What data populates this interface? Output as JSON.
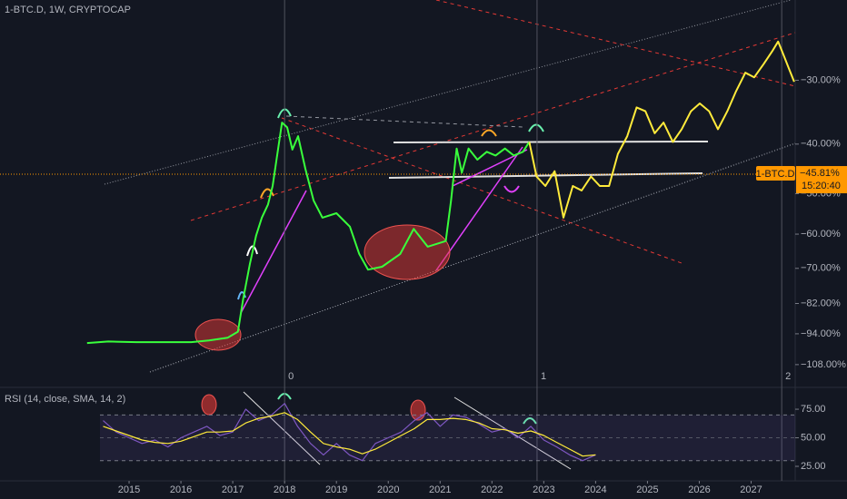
{
  "chart_data": [
    {
      "type": "line",
      "title": "1-BTC.D, 1W, CRYPTOCAP",
      "log_scale": true,
      "xlim": [
        2012.51,
        2027.85
      ],
      "ylim": [
        -118.7,
        -20.9
      ],
      "xticks": [
        2015,
        2016,
        2017,
        2018,
        2019,
        2020,
        2021,
        2022,
        2023,
        2024,
        2025,
        2026,
        2027
      ],
      "yticks": [
        {
          "value": -30,
          "label": "−30.00%"
        },
        {
          "value": -40,
          "label": "−40.00%"
        },
        {
          "value": -50,
          "label": "−50.00%"
        },
        {
          "value": -60,
          "label": "−60.00%"
        },
        {
          "value": -70,
          "label": "−70.00%"
        },
        {
          "value": -82,
          "label": "−82.00%"
        },
        {
          "value": -94,
          "label": "−94.00%"
        },
        {
          "value": -108,
          "label": "−108.00%"
        }
      ],
      "series": [
        {
          "color": "#39ff3c",
          "x": [
            2014.19,
            2014.6,
            2015.14,
            2015.67,
            2016.2,
            2016.54,
            2016.9,
            2017.1,
            2017.2,
            2017.33,
            2017.45,
            2017.56,
            2017.68,
            2017.77,
            2017.86,
            2017.95,
            2018.05,
            2018.15,
            2018.26,
            2018.4,
            2018.56,
            2018.73,
            2019.0,
            2019.26,
            2019.44,
            2019.61,
            2019.88,
            2020.23,
            2020.49,
            2020.76,
            2021.11,
            2021.21,
            2021.32,
            2021.42,
            2021.55,
            2021.72,
            2021.9,
            2022.07,
            2022.25,
            2022.42,
            2022.6,
            2022.72
          ],
          "values": [
            -98.0,
            -97.3,
            -97.6,
            -97.6,
            -97.6,
            -96.9,
            -95.7,
            -93.1,
            -80.5,
            -68.7,
            -60.4,
            -55.7,
            -52.5,
            -48.3,
            -41.8,
            -36.3,
            -37.1,
            -41.0,
            -38.6,
            -44.7,
            -51.6,
            -55.7,
            -54.6,
            -58.0,
            -65.6,
            -70.4,
            -69.5,
            -65.6,
            -58.6,
            -63.5,
            -61.9,
            -51.6,
            -40.8,
            -45.5,
            -40.8,
            -42.9,
            -41.4,
            -42.1,
            -40.8,
            -42.1,
            -41.4,
            -39.6
          ]
        },
        {
          "color": "#ffeb3b",
          "x": [
            2022.72,
            2022.86,
            2023.03,
            2023.21,
            2023.38,
            2023.56,
            2023.73,
            2023.91,
            2024.08,
            2024.26,
            2024.43,
            2024.61,
            2024.79,
            2024.96,
            2025.14,
            2025.31,
            2025.49,
            2025.66,
            2025.84,
            2026.01,
            2026.19,
            2026.36,
            2026.54,
            2026.71,
            2026.89,
            2027.06,
            2027.24,
            2027.41,
            2027.52,
            2027.62,
            2027.73,
            2027.83
          ],
          "values": [
            -39.6,
            -46.3,
            -48.3,
            -45.2,
            -55.7,
            -48.3,
            -49.3,
            -46.3,
            -48.3,
            -48.3,
            -41.8,
            -38.6,
            -33.9,
            -34.5,
            -38.1,
            -36.3,
            -39.6,
            -37.4,
            -34.5,
            -33.3,
            -34.5,
            -37.4,
            -34.5,
            -31.5,
            -29.0,
            -29.6,
            -27.9,
            -26.3,
            -25.2,
            -26.7,
            -28.5,
            -30.2
          ]
        }
      ],
      "last_value": {
        "value": -45.81,
        "label": "−45.81%"
      },
      "symbol": "1-BTC.D",
      "countdown": "15:20:40",
      "markers": [
        {
          "x": 2018.0,
          "label": "0"
        },
        {
          "x": 2022.87,
          "label": "1"
        },
        {
          "x": 2027.59,
          "label": "2"
        }
      ]
    },
    {
      "type": "line",
      "title": "RSI (14, close, SMA, 14, 2)",
      "xlim": [
        2012.51,
        2027.85
      ],
      "ylim": [
        12.3,
        93.3
      ],
      "band": [
        30,
        70
      ],
      "yticks": [
        {
          "value": 75,
          "label": "75.00"
        },
        {
          "value": 50,
          "label": "50.00"
        },
        {
          "value": 25,
          "label": "25.00"
        }
      ],
      "x": [
        2014.5,
        2014.75,
        2015,
        2015.25,
        2015.5,
        2015.75,
        2016,
        2016.25,
        2016.5,
        2016.75,
        2017,
        2017.25,
        2017.5,
        2017.75,
        2018,
        2018.25,
        2018.5,
        2018.75,
        2019,
        2019.25,
        2019.5,
        2019.75,
        2020,
        2020.25,
        2020.5,
        2020.75,
        2021,
        2021.25,
        2021.5,
        2021.75,
        2022,
        2022.25,
        2022.5,
        2022.75,
        2023,
        2023.25,
        2023.5,
        2023.75,
        2024
      ],
      "series": [
        {
          "color": "#7e57c2",
          "values": [
            65,
            55,
            50,
            45,
            48,
            42,
            50,
            55,
            60,
            52,
            55,
            75,
            65,
            70,
            80,
            60,
            45,
            35,
            45,
            35,
            30,
            45,
            50,
            55,
            65,
            72,
            60,
            70,
            68,
            62,
            55,
            58,
            50,
            60,
            48,
            42,
            35,
            30,
            35
          ]
        },
        {
          "color": "#ffeb3b",
          "values": [
            60,
            56,
            52,
            48,
            46,
            45,
            47,
            51,
            55,
            55,
            56,
            63,
            67,
            69,
            72,
            66,
            55,
            45,
            42,
            40,
            36,
            40,
            46,
            52,
            58,
            66,
            66,
            67,
            66,
            63,
            58,
            57,
            54,
            56,
            52,
            46,
            40,
            34,
            35
          ]
        }
      ]
    }
  ]
}
